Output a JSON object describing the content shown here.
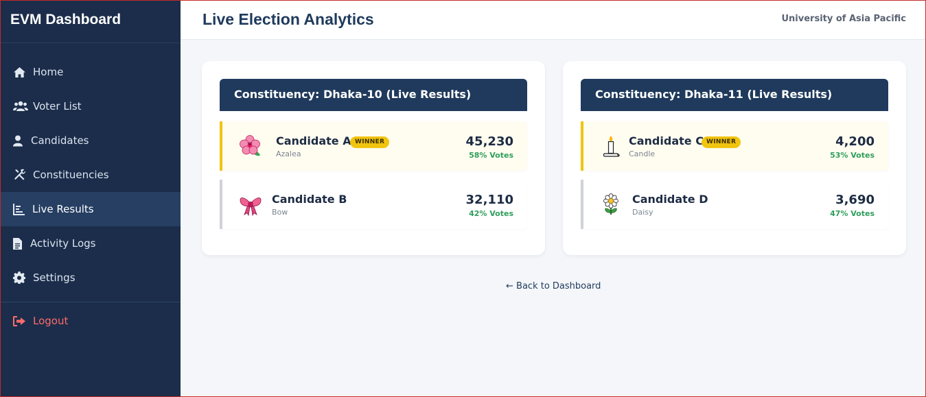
{
  "sidebar": {
    "brand": "EVM Dashboard",
    "items": [
      {
        "label": "Home",
        "icon": "home-icon"
      },
      {
        "label": "Voter List",
        "icon": "users-icon"
      },
      {
        "label": "Candidates",
        "icon": "user-icon"
      },
      {
        "label": "Constituencies",
        "icon": "tools-icon"
      },
      {
        "label": "Live Results",
        "icon": "chart-icon"
      },
      {
        "label": "Activity Logs",
        "icon": "file-icon"
      },
      {
        "label": "Settings",
        "icon": "gear-icon"
      }
    ],
    "active": "Live Results",
    "logout": {
      "label": "Logout",
      "icon": "logout-icon"
    }
  },
  "header": {
    "title": "Live Election Analytics",
    "org": "University of Asia Pacific"
  },
  "constituencies": [
    {
      "title": "Constituency: Dhaka-10 (Live Results)",
      "candidates": [
        {
          "name": "Candidate A",
          "symbol": "Azalea",
          "votes": "45,230",
          "pct": "58% Votes",
          "winner": true,
          "badge": "WINNER",
          "icon": "azalea-icon"
        },
        {
          "name": "Candidate B",
          "symbol": "Bow",
          "votes": "32,110",
          "pct": "42% Votes",
          "winner": false,
          "icon": "bow-icon"
        }
      ]
    },
    {
      "title": "Constituency: Dhaka-11 (Live Results)",
      "candidates": [
        {
          "name": "Candidate C",
          "symbol": "Candle",
          "votes": "4,200",
          "pct": "53% Votes",
          "winner": true,
          "badge": "WINNER",
          "icon": "candle-icon"
        },
        {
          "name": "Candidate D",
          "symbol": "Daisy",
          "votes": "3,690",
          "pct": "47% Votes",
          "winner": false,
          "icon": "daisy-icon"
        }
      ]
    }
  ],
  "back_link": "← Back to Dashboard",
  "colors": {
    "sidebar_bg": "#1b2d4a",
    "accent_navy": "#1f3a5c",
    "winner_gold": "#f1c40f",
    "percent_green": "#2e9e5b",
    "logout_red": "#ff6b6b"
  }
}
